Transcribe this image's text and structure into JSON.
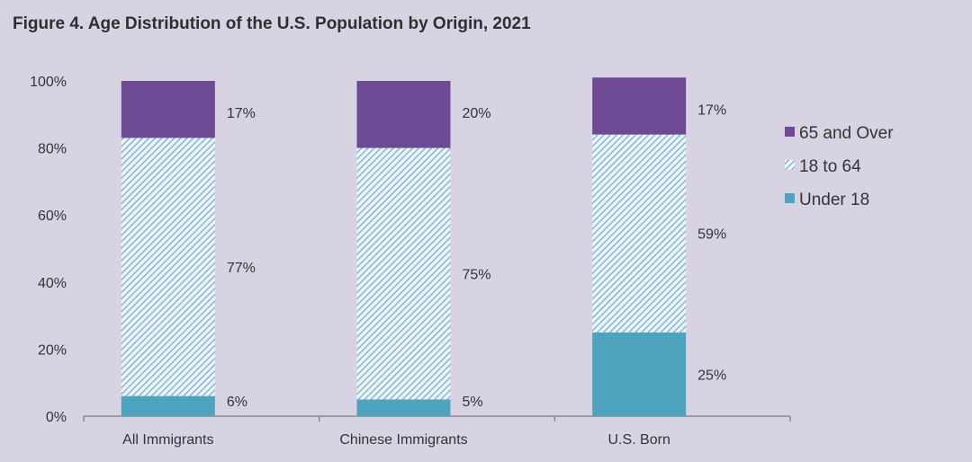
{
  "chart_data": {
    "type": "bar",
    "stacked": true,
    "title": "Figure 4. Age Distribution of the U.S. Population by Origin, 2021",
    "categories": [
      "All Immigrants",
      "Chinese Immigrants",
      "U.S. Born"
    ],
    "series": [
      {
        "name": "Under 18",
        "values": [
          6,
          5,
          25
        ],
        "labels": [
          "6%",
          "5%",
          "25%"
        ],
        "color": "#4ea3bf",
        "pattern": "solid"
      },
      {
        "name": "18 to 64",
        "values": [
          77,
          75,
          59
        ],
        "labels": [
          "77%",
          "75%",
          "59%"
        ],
        "color": "#5fa7c8",
        "pattern": "hatched"
      },
      {
        "name": "65 and Over",
        "values": [
          17,
          20,
          17
        ],
        "labels": [
          "17%",
          "20%",
          "17%"
        ],
        "color": "#6f4a94",
        "pattern": "solid"
      }
    ],
    "ylim": [
      0,
      100
    ],
    "yticks": [
      "0%",
      "20%",
      "40%",
      "60%",
      "80%",
      "100%"
    ],
    "ytick_values": [
      0,
      20,
      40,
      60,
      80,
      100
    ],
    "legend": {
      "position": "right",
      "order": [
        "65 and Over",
        "18 to 64",
        "Under 18"
      ]
    },
    "grid": false,
    "xlabel": "",
    "ylabel": ""
  }
}
